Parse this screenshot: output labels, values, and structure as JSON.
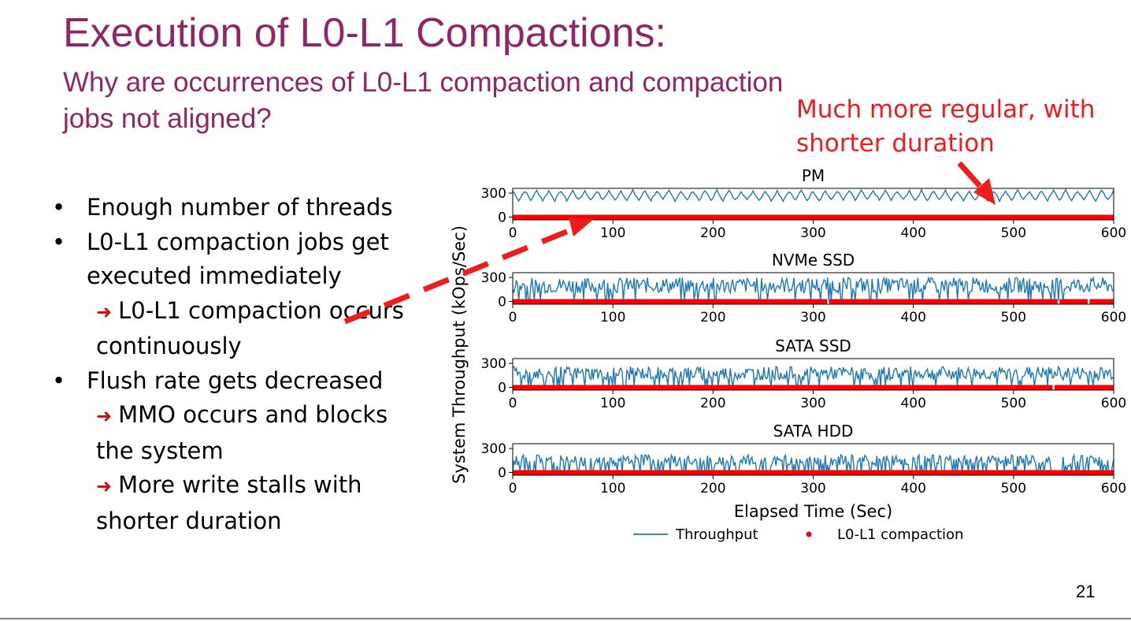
{
  "slide": {
    "title": "Execution of L0-L1 Compactions:",
    "subtitle": "Why are occurrences of L0-L1 compaction and compaction jobs not aligned?",
    "callout": "Much more regular, with shorter duration",
    "page_number": "21",
    "accent_color": "#8e2668",
    "callout_color": "#ee1c1c"
  },
  "bullets": [
    {
      "text": "Enough number of threads",
      "subs": []
    },
    {
      "text": "L0-L1 compaction jobs get executed immediately",
      "subs": [
        "L0-L1 compaction occurs continuously"
      ]
    },
    {
      "text": "Flush rate gets decreased",
      "subs": [
        "MMO occurs and blocks the system",
        "More write stalls with shorter duration"
      ]
    }
  ],
  "chart_data": {
    "type": "line",
    "ylabel": "System Throughput (kOps/Sec)",
    "xlabel": "Elapsed Time (Sec)",
    "xlim": [
      0,
      600
    ],
    "xticks": [
      "0",
      "100",
      "200",
      "300",
      "400",
      "500",
      "600"
    ],
    "yticks": [
      "0",
      "300"
    ],
    "grid": false,
    "legend_position": "bottom",
    "legend": [
      {
        "label": "Throughput",
        "marker": "line",
        "color": "#1f77b4"
      },
      {
        "label": "L0-L1 compaction",
        "marker": "dot",
        "color": "#ff0000"
      }
    ],
    "panels": [
      {
        "title": "PM",
        "throughput_range": [
          180,
          330
        ],
        "period_sec": 12,
        "compaction_gaps_sec": []
      },
      {
        "title": "NVMe SSD",
        "throughput_range": [
          0,
          300
        ],
        "period_sec": 3,
        "compaction_gaps_sec": [
          315,
          545,
          575
        ]
      },
      {
        "title": "SATA SSD",
        "throughput_range": [
          0,
          260
        ],
        "period_sec": 3,
        "compaction_gaps_sec": [
          540
        ]
      },
      {
        "title": "SATA HDD",
        "throughput_range": [
          0,
          220
        ],
        "period_sec": 3,
        "compaction_gaps_sec": []
      }
    ],
    "series": [
      {
        "name": "Throughput",
        "color": "#1f77b4"
      },
      {
        "name": "L0-L1 compaction",
        "color": "#ff0000"
      }
    ]
  }
}
